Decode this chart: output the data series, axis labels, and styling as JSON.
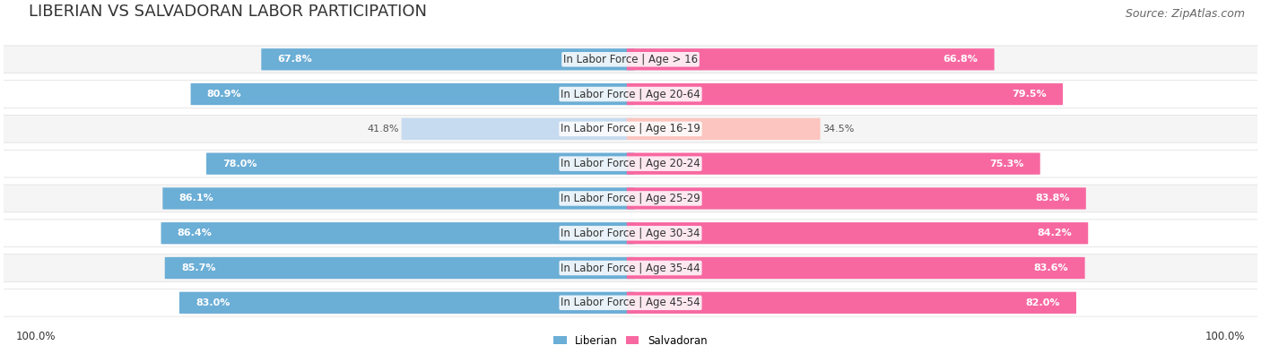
{
  "title": "LIBERIAN VS SALVADORAN LABOR PARTICIPATION",
  "source": "Source: ZipAtlas.com",
  "categories": [
    "In Labor Force | Age > 16",
    "In Labor Force | Age 20-64",
    "In Labor Force | Age 16-19",
    "In Labor Force | Age 20-24",
    "In Labor Force | Age 25-29",
    "In Labor Force | Age 30-34",
    "In Labor Force | Age 35-44",
    "In Labor Force | Age 45-54"
  ],
  "liberian_values": [
    67.8,
    80.9,
    41.8,
    78.0,
    86.1,
    86.4,
    85.7,
    83.0
  ],
  "salvadoran_values": [
    66.8,
    79.5,
    34.5,
    75.3,
    83.8,
    84.2,
    83.6,
    82.0
  ],
  "liberian_color": "#6baed6",
  "liberian_color_light": "#c6dbef",
  "salvadoran_color": "#f768a1",
  "salvadoran_color_light": "#fcc5c0",
  "bar_bg_color": "#f0f0f0",
  "row_bg_color_odd": "#f5f5f5",
  "row_bg_color_even": "#ffffff",
  "label_color": "#333333",
  "max_value": 100.0,
  "legend_liberian": "Liberian",
  "legend_salvadoran": "Salvadoran",
  "title_fontsize": 13,
  "source_fontsize": 9,
  "label_fontsize": 8.5,
  "value_fontsize": 8.0,
  "footer_fontsize": 8.5
}
